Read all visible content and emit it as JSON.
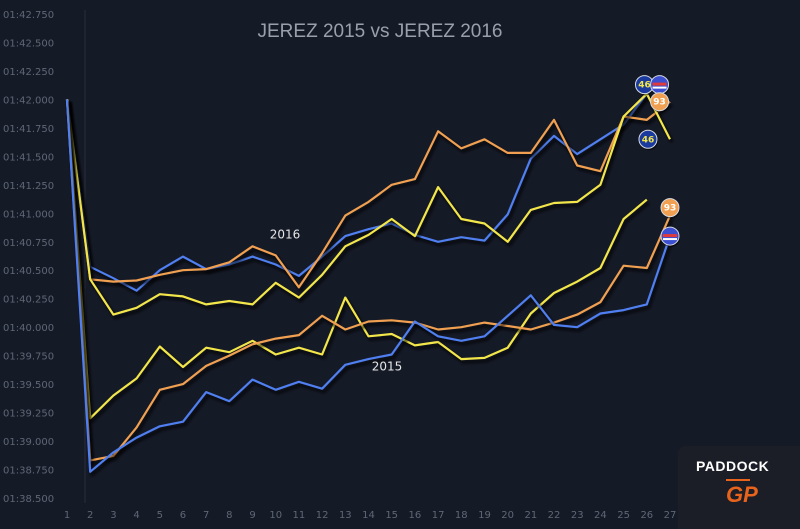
{
  "chart_data": {
    "type": "line",
    "title": "JEREZ 2015 vs JEREZ 2016",
    "xlabel": "",
    "ylabel": "",
    "x": [
      1,
      2,
      3,
      4,
      5,
      6,
      7,
      8,
      9,
      10,
      11,
      12,
      13,
      14,
      15,
      16,
      17,
      18,
      19,
      20,
      21,
      22,
      23,
      24,
      25,
      26,
      27
    ],
    "x_ticks": [
      "1",
      "2",
      "3",
      "4",
      "5",
      "6",
      "7",
      "8",
      "9",
      "10",
      "11",
      "12",
      "13",
      "14",
      "15",
      "16",
      "17",
      "18",
      "19",
      "20",
      "21",
      "22",
      "23",
      "24",
      "25",
      "26",
      "27"
    ],
    "y_ticks": [
      "01:38.500",
      "01:38.750",
      "01:39.000",
      "01:39.250",
      "01:39.500",
      "01:39.750",
      "01:40.000",
      "01:40.250",
      "01:40.500",
      "01:40.750",
      "01:41.000",
      "01:41.250",
      "01:41.500",
      "01:41.750",
      "01:42.000",
      "01:42.250",
      "01:42.500",
      "01:42.750"
    ],
    "ylim_seconds": [
      98.5,
      102.75
    ],
    "grid": false,
    "legend": "none",
    "series": [
      {
        "color": "#4f7ff0",
        "x": [
          1,
          2,
          3,
          4,
          5,
          6,
          7,
          8,
          9,
          10,
          11,
          12,
          13,
          14,
          15,
          16,
          17,
          18,
          19,
          20,
          21,
          22,
          23,
          24,
          25,
          26
        ],
        "y": [
          102.0,
          100.53,
          100.43,
          100.32,
          100.5,
          100.62,
          100.51,
          100.55,
          100.62,
          100.55,
          100.45,
          100.62,
          100.8,
          100.86,
          100.91,
          100.81,
          100.75,
          100.79,
          100.76,
          100.99,
          101.48,
          101.68,
          101.52,
          101.65,
          101.78,
          102.05
        ]
      },
      {
        "color": "#f0a050",
        "x": [
          1,
          2,
          3,
          4,
          5,
          6,
          7,
          8,
          9,
          10,
          11,
          12,
          13,
          14,
          15,
          16,
          17,
          18,
          19,
          20,
          21,
          22,
          23,
          24,
          25,
          26,
          27
        ],
        "y": [
          102.0,
          100.42,
          100.4,
          100.41,
          100.46,
          100.5,
          100.51,
          100.57,
          100.71,
          100.63,
          100.35,
          100.65,
          100.98,
          101.1,
          101.25,
          101.3,
          101.72,
          101.57,
          101.65,
          101.53,
          101.53,
          101.82,
          101.42,
          101.37,
          101.85,
          101.82,
          101.98
        ]
      },
      {
        "color": "#f2e64a",
        "x": [
          1,
          2,
          3,
          4,
          5,
          6,
          7,
          8,
          9,
          10,
          11,
          12,
          13,
          14,
          15,
          16,
          17,
          18,
          19,
          20,
          21,
          22,
          23,
          24,
          25,
          26,
          27
        ],
        "y": [
          102.0,
          100.42,
          100.11,
          100.17,
          100.29,
          100.27,
          100.2,
          100.23,
          100.2,
          100.39,
          100.26,
          100.46,
          100.71,
          100.81,
          100.95,
          100.8,
          101.23,
          100.95,
          100.91,
          100.75,
          101.03,
          101.09,
          101.1,
          101.25,
          101.85,
          102.05,
          101.65
        ]
      },
      {
        "color": "#f2e64a",
        "x": [
          1,
          2,
          3,
          4,
          5,
          6,
          7,
          8,
          9,
          10,
          11,
          12,
          13,
          14,
          15,
          16,
          17,
          18,
          19,
          20,
          21,
          22,
          23,
          24,
          25,
          26
        ],
        "y": [
          102.0,
          99.2,
          99.4,
          99.55,
          99.83,
          99.65,
          99.82,
          99.78,
          99.88,
          99.76,
          99.82,
          99.76,
          100.26,
          99.92,
          99.94,
          99.84,
          99.87,
          99.72,
          99.73,
          99.82,
          100.12,
          100.3,
          100.4,
          100.52,
          100.95,
          101.12
        ]
      },
      {
        "color": "#f0a050",
        "x": [
          1,
          2,
          3,
          4,
          5,
          6,
          7,
          8,
          9,
          10,
          11,
          12,
          13,
          14,
          15,
          16,
          17,
          18,
          19,
          20,
          21,
          22,
          23,
          24,
          25,
          26,
          27
        ],
        "y": [
          102.0,
          98.83,
          98.87,
          99.12,
          99.45,
          99.5,
          99.66,
          99.75,
          99.85,
          99.9,
          99.93,
          100.1,
          99.98,
          100.05,
          100.06,
          100.04,
          99.98,
          100.0,
          100.04,
          100.01,
          99.98,
          100.04,
          100.11,
          100.22,
          100.54,
          100.52,
          100.98
        ]
      },
      {
        "color": "#4f7ff0",
        "x": [
          1,
          2,
          3,
          4,
          5,
          6,
          7,
          8,
          9,
          10,
          11,
          12,
          13,
          14,
          15,
          16,
          17,
          18,
          19,
          20,
          21,
          22,
          23,
          24,
          25,
          26,
          27
        ],
        "y": [
          102.0,
          98.73,
          98.9,
          99.03,
          99.13,
          99.17,
          99.43,
          99.35,
          99.54,
          99.45,
          99.52,
          99.46,
          99.67,
          99.72,
          99.76,
          100.05,
          99.92,
          99.88,
          99.92,
          100.1,
          100.28,
          100.02,
          100.0,
          100.12,
          100.15,
          100.2,
          100.8
        ]
      }
    ],
    "annotations": [
      {
        "text": "2016",
        "x": 10.4,
        "y": 100.78
      },
      {
        "text": "2015",
        "x": 14.8,
        "y": 99.62
      }
    ],
    "markers": [
      {
        "x": 25.9,
        "y": 102.13,
        "fill": "#1a3a9e",
        "text": "46",
        "text_color": "#f2e64a",
        "flag": false
      },
      {
        "x": 26.55,
        "y": 102.13,
        "fill": "#3b4fd0",
        "text": "",
        "text_color": "#ffffff",
        "flag": true
      },
      {
        "x": 26.55,
        "y": 101.98,
        "fill": "#f0a050",
        "text": "93",
        "text_color": "#ffffff",
        "flag": false
      },
      {
        "x": 26.05,
        "y": 101.65,
        "fill": "#1a3a9e",
        "text": "46",
        "text_color": "#f2e64a",
        "flag": false
      },
      {
        "x": 27.0,
        "y": 101.05,
        "fill": "#f0a050",
        "text": "93",
        "text_color": "#ffffff",
        "flag": false
      },
      {
        "x": 27.0,
        "y": 100.8,
        "fill": "#3b4fd0",
        "text": "",
        "text_color": "#ffffff",
        "flag": true
      }
    ]
  },
  "logo": {
    "line1": "PADDOCK",
    "line2": "GP"
  }
}
